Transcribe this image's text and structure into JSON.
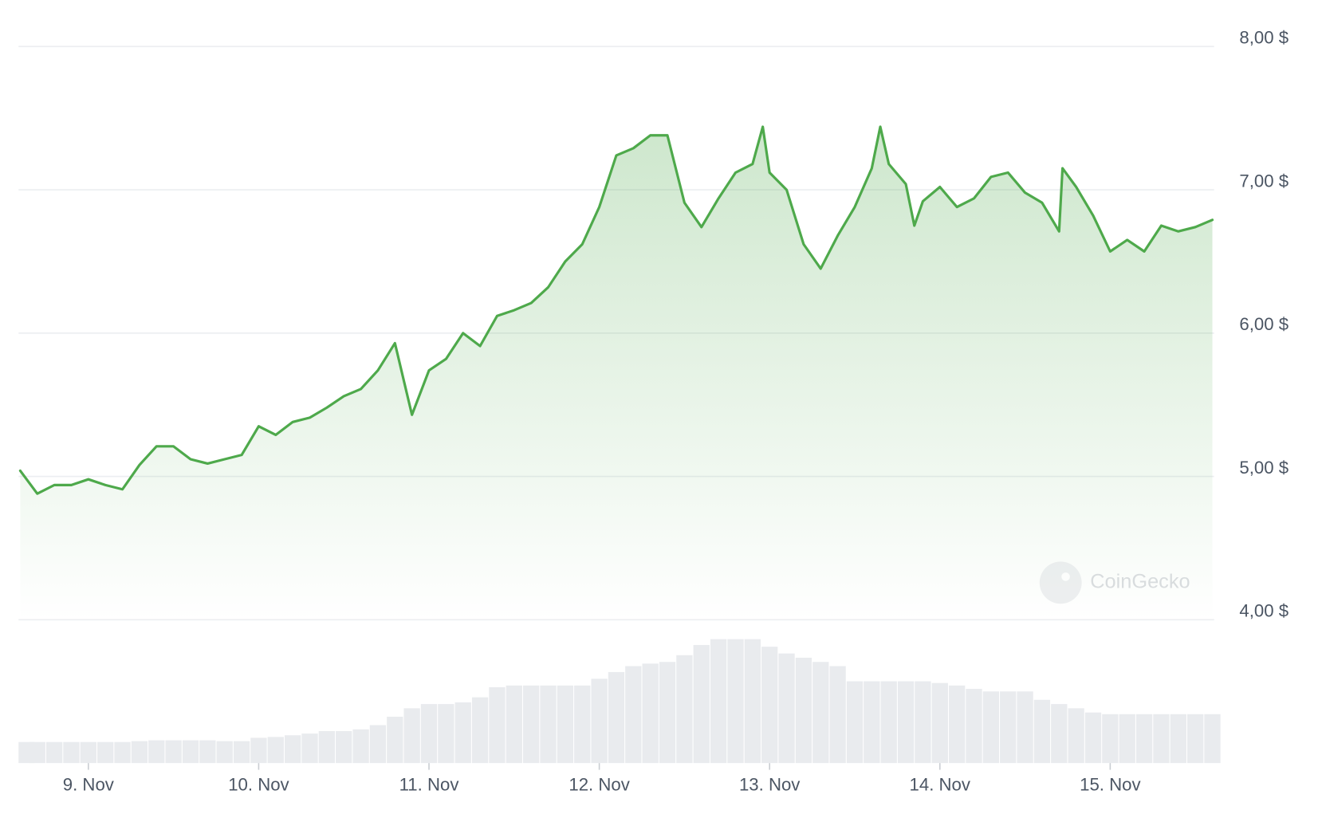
{
  "chart_data": {
    "type": "line",
    "watermark": "CoinGecko",
    "xlim": [
      8.59,
      15.61
    ],
    "xticks": [
      {
        "value": 9,
        "label": "9. Nov"
      },
      {
        "value": 10,
        "label": "10. Nov"
      },
      {
        "value": 11,
        "label": "11. Nov"
      },
      {
        "value": 12,
        "label": "12. Nov"
      },
      {
        "value": 13,
        "label": "13. Nov"
      },
      {
        "value": 14,
        "label": "14. Nov"
      },
      {
        "value": 15,
        "label": "15. Nov"
      }
    ],
    "ylim": [
      4,
      8
    ],
    "yticks": [
      {
        "value": 4,
        "label": "4,00 $"
      },
      {
        "value": 5,
        "label": "5,00 $"
      },
      {
        "value": 6,
        "label": "6,00 $"
      },
      {
        "value": 7,
        "label": "7,00 $"
      },
      {
        "value": 8,
        "label": "8,00 $"
      }
    ],
    "y2lim": [
      0,
      170
    ],
    "grid": true,
    "series": [
      {
        "type": "line",
        "color": "#4ea94b",
        "x": [
          8.6,
          8.7,
          8.8,
          8.9,
          9.0,
          9.1,
          9.2,
          9.3,
          9.4,
          9.5,
          9.6,
          9.7,
          9.8,
          9.9,
          10.0,
          10.1,
          10.2,
          10.3,
          10.4,
          10.5,
          10.6,
          10.7,
          10.8,
          10.9,
          11.0,
          11.1,
          11.2,
          11.3,
          11.4,
          11.5,
          11.6,
          11.7,
          11.8,
          11.9,
          12.0,
          12.1,
          12.2,
          12.3,
          12.4,
          12.5,
          12.6,
          12.7,
          12.8,
          12.9,
          12.96,
          13.0,
          13.1,
          13.2,
          13.3,
          13.4,
          13.5,
          13.6,
          13.65,
          13.7,
          13.8,
          13.85,
          13.9,
          14.0,
          14.1,
          14.2,
          14.3,
          14.4,
          14.5,
          14.6,
          14.7,
          14.72,
          14.8,
          14.9,
          15.0,
          15.1,
          15.2,
          15.3,
          15.4,
          15.5,
          15.6
        ],
        "values": [
          5.04,
          4.88,
          4.94,
          4.94,
          4.98,
          4.94,
          4.91,
          5.08,
          5.21,
          5.21,
          5.12,
          5.09,
          5.12,
          5.15,
          5.35,
          5.29,
          5.38,
          5.41,
          5.48,
          5.56,
          5.61,
          5.74,
          5.93,
          5.43,
          5.74,
          5.82,
          6.0,
          5.91,
          6.12,
          6.16,
          6.21,
          6.32,
          6.5,
          6.62,
          6.88,
          7.24,
          7.29,
          7.38,
          7.38,
          6.91,
          6.74,
          6.94,
          7.12,
          7.18,
          7.44,
          7.12,
          7.0,
          6.62,
          6.45,
          6.68,
          6.88,
          7.15,
          7.44,
          7.18,
          7.04,
          6.75,
          6.92,
          7.02,
          6.88,
          6.94,
          7.09,
          7.12,
          6.98,
          6.91,
          6.71,
          7.15,
          7.02,
          6.82,
          6.57,
          6.65,
          6.57,
          6.75,
          6.71,
          6.74,
          6.79
        ]
      },
      {
        "type": "bar",
        "axis": "y2",
        "color": "#e9ebee",
        "x": [
          8.6,
          8.7,
          8.8,
          8.9,
          9.0,
          9.1,
          9.2,
          9.3,
          9.4,
          9.5,
          9.6,
          9.7,
          9.8,
          9.9,
          10.0,
          10.1,
          10.2,
          10.3,
          10.4,
          10.5,
          10.6,
          10.7,
          10.8,
          10.9,
          11.0,
          11.1,
          11.2,
          11.3,
          11.4,
          11.5,
          11.6,
          11.7,
          11.8,
          11.9,
          12.0,
          12.1,
          12.2,
          12.3,
          12.4,
          12.5,
          12.6,
          12.7,
          12.8,
          12.9,
          13.0,
          13.1,
          13.2,
          13.3,
          13.4,
          13.5,
          13.6,
          13.7,
          13.8,
          13.9,
          14.0,
          14.1,
          14.2,
          14.3,
          14.4,
          14.5,
          14.6,
          14.7,
          14.8,
          14.9,
          15.0,
          15.1,
          15.2,
          15.3,
          15.4,
          15.5,
          15.6
        ],
        "values": [
          25,
          25,
          25,
          25,
          25,
          25,
          25,
          26,
          27,
          27,
          27,
          27,
          26,
          26,
          30,
          31,
          33,
          35,
          38,
          38,
          40,
          45,
          55,
          65,
          70,
          70,
          72,
          78,
          90,
          92,
          92,
          92,
          92,
          92,
          100,
          108,
          115,
          118,
          120,
          128,
          140,
          147,
          147,
          147,
          138,
          130,
          125,
          120,
          115,
          97,
          97,
          97,
          97,
          97,
          95,
          92,
          88,
          85,
          85,
          85,
          75,
          70,
          65,
          60,
          58,
          58,
          58,
          58,
          58,
          58,
          58
        ]
      }
    ]
  }
}
